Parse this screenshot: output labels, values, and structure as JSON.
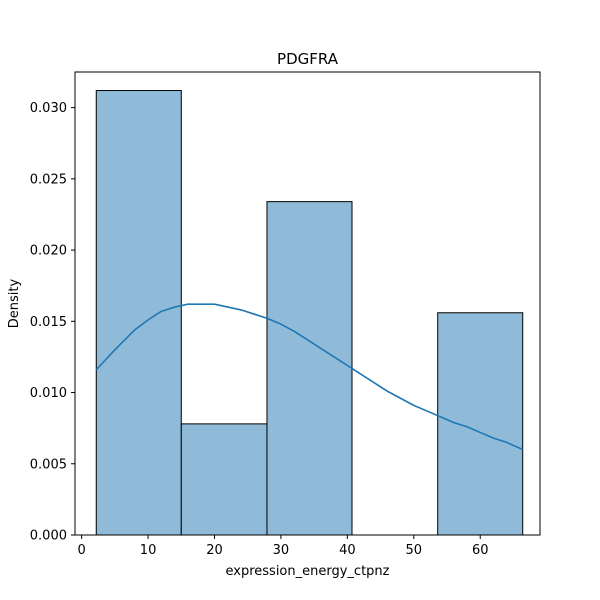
{
  "chart_data": {
    "type": "bar",
    "subtype": "histogram-with-kde",
    "title": "PDGFRA",
    "xlabel": "expression_energy_ctpnz",
    "ylabel": "Density",
    "xlim": [
      -1,
      69
    ],
    "ylim": [
      0,
      0.0325
    ],
    "xticks": [
      0,
      10,
      20,
      30,
      40,
      50,
      60
    ],
    "yticks": [
      0.0,
      0.005,
      0.01,
      0.015,
      0.02,
      0.025,
      0.03
    ],
    "ytick_labels": [
      "0.000",
      "0.005",
      "0.010",
      "0.015",
      "0.020",
      "0.025",
      "0.030"
    ],
    "bins": [
      {
        "x0": 2.2,
        "x1": 15.0,
        "density": 0.0312
      },
      {
        "x0": 15.0,
        "x1": 27.9,
        "density": 0.0078
      },
      {
        "x0": 27.9,
        "x1": 40.7,
        "density": 0.0234
      },
      {
        "x0": 40.7,
        "x1": 53.6,
        "density": 0.0
      },
      {
        "x0": 53.6,
        "x1": 66.4,
        "density": 0.0156
      }
    ],
    "kde": {
      "x": [
        2.2,
        5,
        8,
        10,
        12,
        14,
        16,
        18,
        20,
        22,
        24,
        26,
        28,
        30,
        32,
        34,
        36,
        38,
        40,
        42,
        44,
        46,
        48,
        50,
        52,
        54,
        56,
        58,
        60,
        62,
        64,
        66.4
      ],
      "y": [
        0.0116,
        0.013,
        0.0144,
        0.0151,
        0.0157,
        0.016,
        0.0162,
        0.0162,
        0.0162,
        0.016,
        0.0158,
        0.0155,
        0.0152,
        0.0148,
        0.0143,
        0.0137,
        0.0131,
        0.0125,
        0.0119,
        0.0113,
        0.0107,
        0.0101,
        0.0096,
        0.0091,
        0.0087,
        0.0083,
        0.0079,
        0.0076,
        0.0072,
        0.0068,
        0.0065,
        0.006
      ]
    },
    "colors": {
      "bar_fill": "#8fbbd9",
      "bar_edge": "#000000",
      "kde_line": "#1f77b4"
    },
    "grid": false,
    "legend": "none"
  }
}
